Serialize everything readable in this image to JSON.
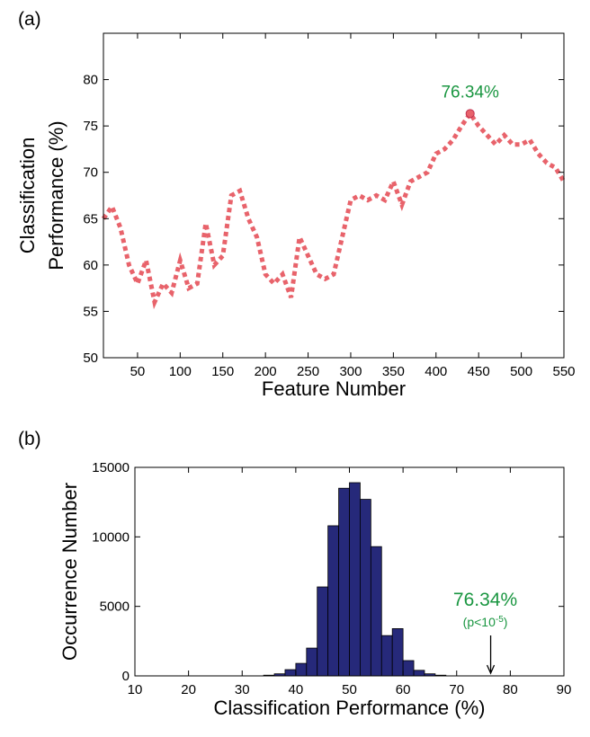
{
  "chart_data": [
    {
      "type": "line",
      "panel": "(a)",
      "xlabel": "Feature Number",
      "ylabel": [
        "Classification",
        "Performance (%)"
      ],
      "x": [
        10,
        20,
        30,
        40,
        50,
        60,
        70,
        80,
        90,
        100,
        110,
        120,
        130,
        140,
        150,
        160,
        170,
        180,
        190,
        200,
        210,
        220,
        230,
        240,
        250,
        260,
        270,
        280,
        290,
        300,
        310,
        320,
        330,
        340,
        350,
        360,
        370,
        380,
        390,
        400,
        410,
        420,
        430,
        440,
        450,
        460,
        470,
        480,
        490,
        500,
        510,
        520,
        530,
        540,
        550
      ],
      "series": [
        {
          "color": "#e8636b",
          "values": [
            65,
            66.3,
            64,
            60,
            58,
            60.5,
            56,
            58,
            57,
            60.5,
            57.5,
            58,
            64.5,
            60,
            61,
            67.5,
            68,
            65,
            63,
            59,
            58,
            59,
            56.5,
            63,
            61,
            59,
            58.5,
            59,
            63,
            67,
            67.5,
            67,
            67.5,
            67,
            69,
            66.5,
            69,
            69.5,
            70,
            72,
            72.5,
            73.5,
            75,
            76.34,
            75,
            74,
            73,
            74,
            73,
            73,
            73.5,
            72,
            71,
            70.5,
            69
          ]
        }
      ],
      "xlim": [
        10,
        550
      ],
      "ylim": [
        50,
        85
      ],
      "xticks": [
        50,
        100,
        150,
        200,
        250,
        300,
        350,
        400,
        450,
        500,
        550
      ],
      "yticks": [
        50,
        55,
        60,
        65,
        70,
        75,
        80
      ],
      "annotations": [
        {
          "x": 440,
          "y": 76.34,
          "text": "76.34%",
          "color": "#1a9641"
        }
      ]
    },
    {
      "type": "histogram",
      "panel": "(b)",
      "xlabel": "Classification Performance (%)",
      "ylabel": "Occurrence Number",
      "bins": [
        34,
        36,
        38,
        40,
        42,
        44,
        46,
        48,
        50,
        52,
        54,
        56,
        58,
        60,
        62,
        64,
        66,
        68
      ],
      "values": [
        50,
        150,
        450,
        900,
        2000,
        6400,
        10800,
        13500,
        13900,
        12700,
        9300,
        2900,
        3400,
        1100,
        400,
        150,
        50
      ],
      "color": "#26297a",
      "xlim": [
        10,
        90
      ],
      "ylim": [
        0,
        15000
      ],
      "xticks": [
        10,
        20,
        30,
        40,
        50,
        60,
        70,
        80,
        90
      ],
      "yticks": [
        0,
        5000,
        10000,
        15000
      ],
      "annotations": [
        {
          "x": 76.34,
          "text": "76.34%",
          "note": [
            "(p<10",
            "-5",
            ")"
          ],
          "color": "#1a9641"
        }
      ]
    }
  ]
}
